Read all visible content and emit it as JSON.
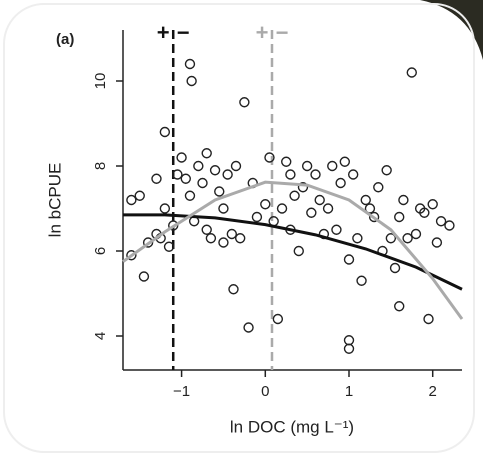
{
  "chart_data": {
    "type": "scatter",
    "panel_label": "(a)",
    "x_label": "ln DOC (mg L⁻¹)",
    "y_label": "ln bCPUE",
    "xlim": [
      -1.7,
      2.35
    ],
    "ylim": [
      3.2,
      11.2
    ],
    "xticks": [
      {
        "value": -1,
        "label": "−1"
      },
      0,
      1,
      2
    ],
    "yticks": [
      4,
      6,
      8,
      10
    ],
    "series": [
      {
        "color": "#222",
        "x": [
          -1.6,
          -1.5,
          -1.6,
          -1.45,
          -1.4,
          -1.3,
          -1.3,
          -1.25,
          -1.2,
          -1.15,
          -1.1,
          -1.05,
          -1.0,
          -0.95,
          -0.9,
          -0.88,
          -0.85,
          -0.8,
          -0.75,
          -0.7,
          -0.65,
          -0.6,
          -0.55,
          -0.5,
          -0.45,
          -0.4,
          -0.38,
          -0.35,
          -0.3,
          -0.25,
          -0.2,
          -0.15,
          -0.1,
          0,
          0.05,
          0.1,
          0.15,
          0.2,
          0.25,
          0.3,
          0.35,
          0.4,
          0.45,
          0.5,
          0.55,
          0.6,
          0.65,
          0.7,
          0.75,
          0.8,
          0.85,
          0.9,
          0.95,
          1.0,
          1.0,
          1.0,
          1.05,
          1.1,
          1.15,
          1.2,
          1.3,
          1.35,
          1.4,
          1.45,
          1.5,
          1.55,
          1.6,
          1.6,
          1.65,
          1.7,
          1.75,
          1.8,
          1.85,
          1.9,
          1.95,
          2.0,
          2.05,
          2.1,
          2.2,
          -0.5,
          -0.7,
          -1.2,
          -0.9,
          0.3,
          1.25
        ],
        "y": [
          7.2,
          7.3,
          5.9,
          5.4,
          6.2,
          6.4,
          7.7,
          6.3,
          8.8,
          6.1,
          6.6,
          7.8,
          8.2,
          7.7,
          10.4,
          10.0,
          6.7,
          8.0,
          7.6,
          8.3,
          6.3,
          7.9,
          7.4,
          7.0,
          7.8,
          6.4,
          5.1,
          8.0,
          6.3,
          9.5,
          4.2,
          7.6,
          6.8,
          7.1,
          8.2,
          6.7,
          4.4,
          7.0,
          8.1,
          6.5,
          7.3,
          6.0,
          7.5,
          8.0,
          6.9,
          7.8,
          7.2,
          6.4,
          7.0,
          8.0,
          6.5,
          7.6,
          8.1,
          5.8,
          3.9,
          3.7,
          7.8,
          6.3,
          5.3,
          7.2,
          6.8,
          7.5,
          6.0,
          7.9,
          6.3,
          5.6,
          4.7,
          6.8,
          7.2,
          6.3,
          10.2,
          6.4,
          7.0,
          6.9,
          4.4,
          7.1,
          6.2,
          6.7,
          6.6,
          6.2,
          6.5,
          7.0,
          7.3,
          7.8,
          7.0
        ]
      }
    ],
    "lines": [
      {
        "color": "#111",
        "x": [
          -1.7,
          -1.2,
          -0.6,
          0,
          0.6,
          1.2,
          1.8,
          2.35
        ],
        "y": [
          6.85,
          6.85,
          6.78,
          6.62,
          6.38,
          6.05,
          5.62,
          5.1
        ]
      },
      {
        "color": "#aaa",
        "x": [
          -1.7,
          -1.2,
          -0.6,
          0,
          0.5,
          1.0,
          1.5,
          2.0,
          2.35
        ],
        "y": [
          5.75,
          6.45,
          7.2,
          7.62,
          7.55,
          7.2,
          6.5,
          5.35,
          4.4
        ]
      }
    ],
    "vlines": [
      {
        "x": -1.1,
        "color": "#111",
        "labels": [
          "+",
          "−"
        ]
      },
      {
        "x": 0.08,
        "color": "#aaa",
        "labels": [
          "+",
          "−"
        ]
      }
    ]
  }
}
